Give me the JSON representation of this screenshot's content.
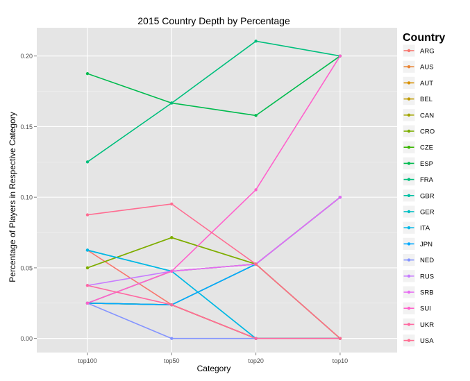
{
  "chart_data": {
    "type": "line",
    "title": "2015 Country Depth by Percentage",
    "xlabel": "Category",
    "ylabel": "Percentage of Players in Respective Category",
    "categories": [
      "top100",
      "top50",
      "top20",
      "top10"
    ],
    "ylim": [
      -0.01,
      0.22
    ],
    "yticks": [
      "0.00",
      "0.05",
      "0.10",
      "0.15",
      "0.20"
    ],
    "ytick_values": [
      0,
      0.05,
      0.1,
      0.15,
      0.2
    ],
    "grid": true,
    "legend_title": "Country",
    "legend_position": "right",
    "series": [
      {
        "name": "ARG",
        "color": "#F8766D",
        "values": [
          0.0625,
          0.0238,
          0.0526,
          0.0
        ]
      },
      {
        "name": "AUS",
        "color": "#EA8331",
        "values": [
          0.025,
          0.0238,
          0.0,
          0.0
        ]
      },
      {
        "name": "AUT",
        "color": "#D89000",
        "values": [
          0.025,
          0.0238,
          0.0,
          0.0
        ]
      },
      {
        "name": "BEL",
        "color": "#C09B00",
        "values": [
          0.025,
          0.0238,
          0.0,
          0.0
        ]
      },
      {
        "name": "CAN",
        "color": "#A3A500",
        "values": [
          0.05,
          0.0714,
          0.0526,
          0.0
        ]
      },
      {
        "name": "CRO",
        "color": "#7CAE00",
        "values": [
          0.05,
          0.0714,
          0.0526,
          0.0
        ]
      },
      {
        "name": "CZE",
        "color": "#39B600",
        "values": [
          0.025,
          0.0476,
          0.0526,
          0.1
        ]
      },
      {
        "name": "ESP",
        "color": "#00BB4E",
        "values": [
          0.1875,
          0.1667,
          0.1579,
          0.2
        ]
      },
      {
        "name": "FRA",
        "color": "#00BF7D",
        "values": [
          0.125,
          0.1667,
          0.2105,
          0.2
        ]
      },
      {
        "name": "GBR",
        "color": "#00C1A3",
        "values": [
          0.025,
          0.0238,
          0.0526,
          0.1
        ]
      },
      {
        "name": "GER",
        "color": "#00BFC4",
        "values": [
          0.0625,
          0.0476,
          0.0,
          0.0
        ]
      },
      {
        "name": "ITA",
        "color": "#00B8E7",
        "values": [
          0.0625,
          0.0476,
          0.0,
          0.0
        ]
      },
      {
        "name": "JPN",
        "color": "#00A9FF",
        "values": [
          0.025,
          0.0238,
          0.0526,
          0.1
        ]
      },
      {
        "name": "NED",
        "color": "#8494FF",
        "values": [
          0.025,
          0.0,
          0.0,
          0.0
        ]
      },
      {
        "name": "RUS",
        "color": "#C77CFF",
        "values": [
          0.0375,
          0.0476,
          0.0526,
          0.1
        ]
      },
      {
        "name": "SRB",
        "color": "#E76BF3",
        "values": [
          0.025,
          0.0476,
          0.0526,
          0.1
        ]
      },
      {
        "name": "SUI",
        "color": "#FF61CC",
        "values": [
          0.025,
          0.0476,
          0.1053,
          0.2
        ]
      },
      {
        "name": "UKR",
        "color": "#FF68A1",
        "values": [
          0.0375,
          0.0238,
          0.0,
          0.0
        ]
      },
      {
        "name": "USA",
        "color": "#FF6C91",
        "values": [
          0.0875,
          0.0952,
          0.0526,
          0.0
        ]
      }
    ]
  }
}
